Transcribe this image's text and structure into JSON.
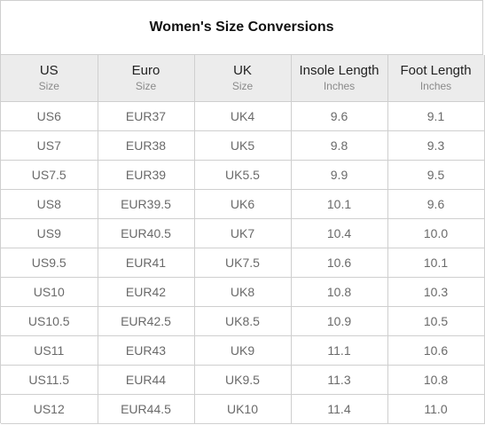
{
  "title": "Women's Size Conversions",
  "columns": [
    {
      "label": "US",
      "unit": "Size"
    },
    {
      "label": "Euro",
      "unit": "Size"
    },
    {
      "label": "UK",
      "unit": "Size"
    },
    {
      "label": "Insole Length",
      "unit": "Inches"
    },
    {
      "label": "Foot Length",
      "unit": "Inches"
    }
  ],
  "rows": [
    [
      "US6",
      "EUR37",
      "UK4",
      "9.6",
      "9.1"
    ],
    [
      "US7",
      "EUR38",
      "UK5",
      "9.8",
      "9.3"
    ],
    [
      "US7.5",
      "EUR39",
      "UK5.5",
      "9.9",
      "9.5"
    ],
    [
      "US8",
      "EUR39.5",
      "UK6",
      "10.1",
      "9.6"
    ],
    [
      "US9",
      "EUR40.5",
      "UK7",
      "10.4",
      "10.0"
    ],
    [
      "US9.5",
      "EUR41",
      "UK7.5",
      "10.6",
      "10.1"
    ],
    [
      "US10",
      "EUR42",
      "UK8",
      "10.8",
      "10.3"
    ],
    [
      "US10.5",
      "EUR42.5",
      "UK8.5",
      "10.9",
      "10.5"
    ],
    [
      "US11",
      "EUR43",
      "UK9",
      "11.1",
      "10.6"
    ],
    [
      "US11.5",
      "EUR44",
      "UK9.5",
      "11.3",
      "10.8"
    ],
    [
      "US12",
      "EUR44.5",
      "UK10",
      "11.4",
      "11.0"
    ]
  ]
}
